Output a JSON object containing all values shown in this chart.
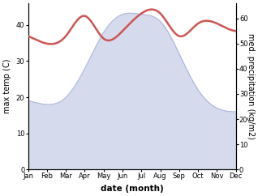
{
  "months": [
    "Jan",
    "Feb",
    "Mar",
    "Apr",
    "May",
    "Jun",
    "Jul",
    "Aug",
    "Sep",
    "Oct",
    "Nov",
    "Dec"
  ],
  "temp": [
    19,
    18,
    20,
    28,
    38,
    43,
    43,
    41,
    32,
    22,
    17,
    16
  ],
  "precip": [
    53,
    50,
    53,
    61,
    52,
    55,
    62,
    62,
    53,
    58,
    58,
    55
  ],
  "temp_fill_color": "#c8cfe8",
  "temp_line_color": "#a0a8d0",
  "precip_color": "#cd5555",
  "temp_ylim": [
    0,
    46
  ],
  "precip_ylim": [
    0,
    66
  ],
  "temp_yticks": [
    0,
    10,
    20,
    30,
    40
  ],
  "precip_yticks": [
    0,
    10,
    20,
    30,
    40,
    50,
    60
  ],
  "xlabel": "date (month)",
  "ylabel_left": "max temp (C)",
  "ylabel_right": "med. precipitation (kg/m2)",
  "tick_fontsize": 6,
  "label_fontsize": 7,
  "precip_linewidth": 1.8,
  "temp_linewidth": 0.5
}
